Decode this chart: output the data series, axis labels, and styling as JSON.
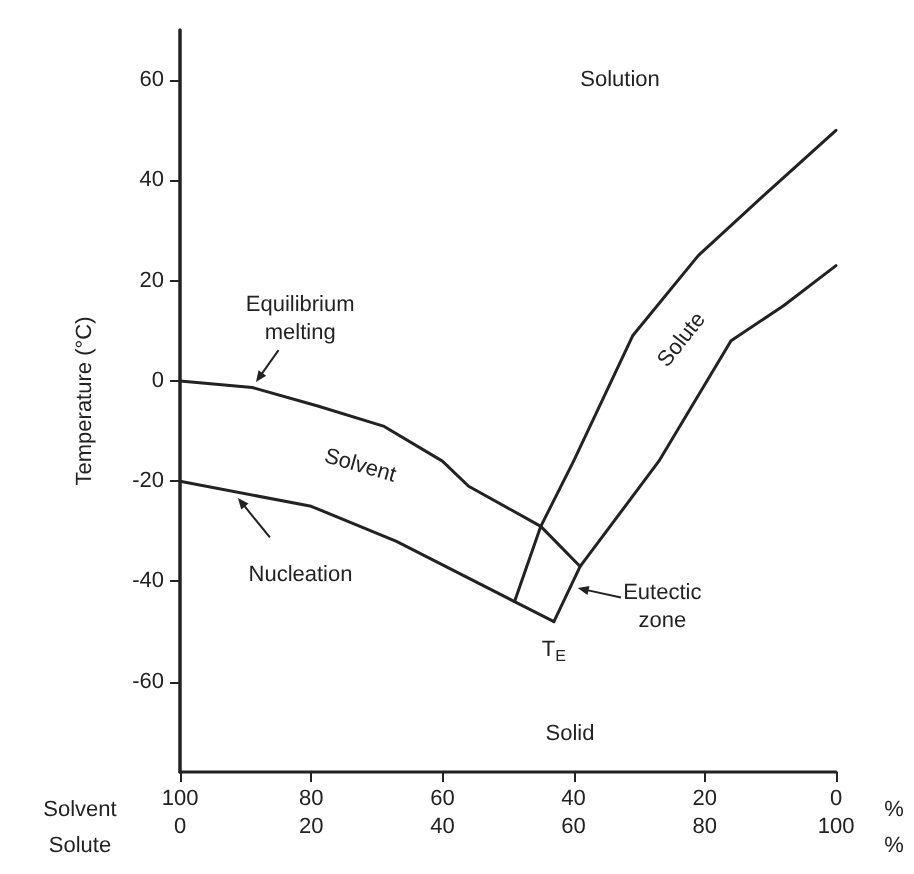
{
  "chart_data": {
    "type": "line",
    "ylabel": "Temperature (°C)",
    "xlabel": "Solute",
    "x2label": "Solvent",
    "xlim": [
      0,
      100
    ],
    "xticks": [
      0,
      20,
      40,
      60,
      80,
      100
    ],
    "x2lim": [
      100,
      0
    ],
    "x2ticks": [
      100,
      80,
      60,
      40,
      20,
      0
    ],
    "ylim": [
      -78,
      70
    ],
    "yticks": [
      -60,
      -40,
      -20,
      0,
      20,
      40,
      60
    ],
    "grid": false,
    "marker": "none",
    "line_style": "solid",
    "series": [
      {
        "color": "#222222",
        "x": [
          0,
          11,
          21,
          31,
          40,
          44,
          55,
          61
        ],
        "values": [
          0,
          -1.3,
          -5,
          -9,
          -16,
          -21,
          -29,
          -37
        ]
      },
      {
        "color": "#222222",
        "x": [
          0,
          20,
          33,
          51,
          57
        ],
        "values": [
          -20,
          -25,
          -32,
          -44,
          -48
        ]
      },
      {
        "color": "#222222",
        "x": [
          51,
          55,
          60,
          69,
          79,
          89,
          100
        ],
        "values": [
          -44,
          -29,
          -16,
          9,
          25,
          37,
          50
        ]
      },
      {
        "color": "#222222",
        "x": [
          57,
          61,
          73,
          84,
          92,
          100
        ],
        "values": [
          -48,
          -37,
          -16,
          8,
          15,
          23
        ]
      }
    ],
    "annotations": [
      "Solution",
      "Solid",
      "Solvent",
      "Solute",
      {
        "text": "Equilibrium melting",
        "x": 11,
        "y": -1.3
      },
      {
        "text": "Nucleation",
        "x": 8,
        "y": -22
      },
      {
        "text": "Eutectic zone",
        "x": 59.5,
        "y": -41
      },
      {
        "text": "T$_{E}$",
        "x": 57,
        "y": -48
      },
      "%",
      "%"
    ]
  }
}
